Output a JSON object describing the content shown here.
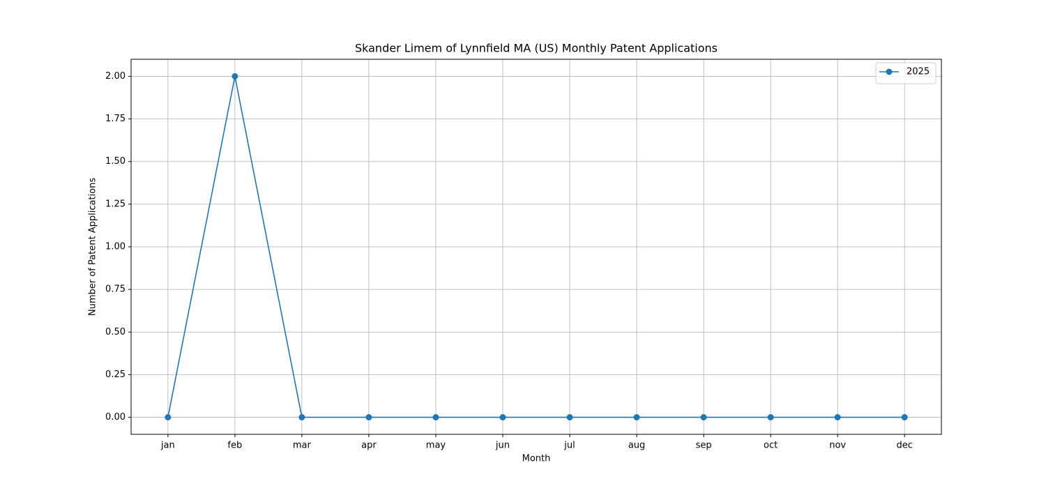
{
  "chart_data": {
    "type": "line",
    "title": "Skander Limem of Lynnfield MA (US) Monthly Patent Applications",
    "xlabel": "Month",
    "ylabel": "Number of Patent Applications",
    "categories": [
      "jan",
      "feb",
      "mar",
      "apr",
      "may",
      "jun",
      "jul",
      "aug",
      "sep",
      "oct",
      "nov",
      "dec"
    ],
    "series": [
      {
        "name": "2025",
        "color": "#1f77b4",
        "values": [
          0,
          2,
          0,
          0,
          0,
          0,
          0,
          0,
          0,
          0,
          0,
          0
        ]
      }
    ],
    "ylim": [
      -0.1,
      2.1
    ],
    "yticks": [
      {
        "value": 0,
        "label": "0.00"
      },
      {
        "value": 0.25,
        "label": "0.25"
      },
      {
        "value": 0.5,
        "label": "0.50"
      },
      {
        "value": 0.75,
        "label": "0.75"
      },
      {
        "value": 1,
        "label": "1.00"
      },
      {
        "value": 1.25,
        "label": "1.25"
      },
      {
        "value": 1.5,
        "label": "1.50"
      },
      {
        "value": 1.75,
        "label": "1.75"
      },
      {
        "value": 2,
        "label": "2.00"
      }
    ],
    "grid": true,
    "legend": "upper right"
  }
}
